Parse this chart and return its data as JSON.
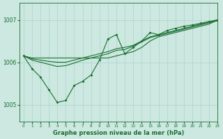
{
  "title": "Graphe pression niveau de la mer (hPa)",
  "background_color": "#cce8e0",
  "grid_color": "#b0d8cc",
  "line_color": "#1a6e32",
  "xlim": [
    -0.5,
    23
  ],
  "ylim": [
    1004.6,
    1007.4
  ],
  "yticks": [
    1005,
    1006,
    1007
  ],
  "xticks": [
    0,
    1,
    2,
    3,
    4,
    5,
    6,
    7,
    8,
    9,
    10,
    11,
    12,
    13,
    14,
    15,
    16,
    17,
    18,
    19,
    20,
    21,
    22,
    23
  ],
  "series_flat": {
    "x": [
      0,
      1,
      2,
      3,
      4,
      5,
      6,
      7,
      8,
      9,
      10,
      11,
      12,
      13,
      14,
      15,
      16,
      17,
      18,
      19,
      20,
      21,
      22,
      23
    ],
    "y": [
      1006.15,
      1006.1,
      1006.1,
      1006.1,
      1006.1,
      1006.1,
      1006.1,
      1006.1,
      1006.1,
      1006.1,
      1006.1,
      1006.15,
      1006.2,
      1006.25,
      1006.35,
      1006.5,
      1006.6,
      1006.65,
      1006.7,
      1006.75,
      1006.8,
      1006.85,
      1006.9,
      1007.0
    ]
  },
  "series_zigzag": {
    "x": [
      0,
      1,
      2,
      3,
      4,
      5,
      6,
      7,
      8,
      9,
      10,
      11,
      12,
      13,
      14,
      15,
      16,
      17,
      18,
      19,
      20,
      21,
      22,
      23
    ],
    "y": [
      1006.15,
      1005.85,
      1005.65,
      1005.35,
      1005.05,
      1005.1,
      1005.45,
      1005.55,
      1005.7,
      1006.05,
      1006.55,
      1006.65,
      1006.2,
      1006.35,
      1006.5,
      1006.7,
      1006.65,
      1006.75,
      1006.8,
      1006.85,
      1006.88,
      1006.92,
      1006.96,
      1007.0
    ]
  },
  "series_mid1": {
    "x": [
      0,
      1,
      2,
      3,
      4,
      5,
      6,
      7,
      8,
      9,
      10,
      11,
      12,
      13,
      14,
      15,
      16,
      17,
      18,
      19,
      20,
      21,
      22,
      23
    ],
    "y": [
      1006.15,
      1006.08,
      1006.05,
      1006.02,
      1006.0,
      1006.0,
      1006.05,
      1006.1,
      1006.15,
      1006.2,
      1006.25,
      1006.32,
      1006.35,
      1006.4,
      1006.5,
      1006.6,
      1006.65,
      1006.7,
      1006.75,
      1006.8,
      1006.85,
      1006.9,
      1006.95,
      1007.0
    ]
  },
  "series_mid2": {
    "x": [
      0,
      1,
      2,
      3,
      4,
      5,
      6,
      7,
      8,
      9,
      10,
      11,
      12,
      13,
      14,
      15,
      16,
      17,
      18,
      19,
      20,
      21,
      22,
      23
    ],
    "y": [
      1006.15,
      1006.05,
      1006.0,
      1005.95,
      1005.9,
      1005.92,
      1005.98,
      1006.05,
      1006.1,
      1006.15,
      1006.2,
      1006.28,
      1006.3,
      1006.38,
      1006.48,
      1006.58,
      1006.63,
      1006.68,
      1006.73,
      1006.78,
      1006.83,
      1006.88,
      1006.93,
      1006.98
    ]
  }
}
